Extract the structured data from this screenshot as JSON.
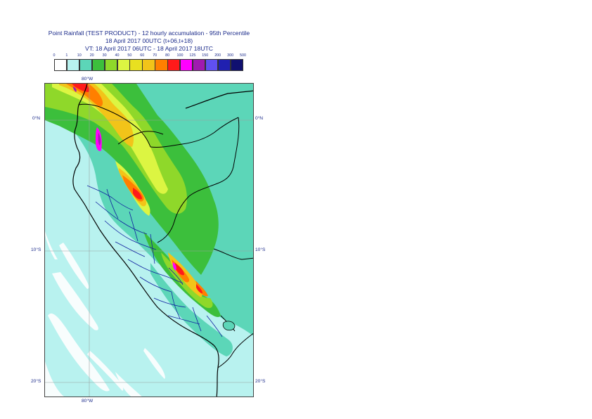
{
  "title": {
    "line1": "Point Rainfall (TEST PRODUCT) - 12 hourly accumulation - 95th Percentile",
    "line2": "18 April 2017 00UTC (t+06,t+18)",
    "line3": "VT: 18 April 2017 06UTC - 18 April 2017 18UTC"
  },
  "legend": {
    "thresholds": [
      "0",
      "1",
      "10",
      "20",
      "30",
      "40",
      "50",
      "60",
      "70",
      "80",
      "100",
      "125",
      "150",
      "200",
      "300",
      "500"
    ],
    "colors": [
      "#ffffff",
      "#b8f2ef",
      "#5cd6b8",
      "#3cbf3c",
      "#8fd82a",
      "#dcf542",
      "#e8e020",
      "#f2c419",
      "#ff7f00",
      "#ff1a1a",
      "#ff00ff",
      "#a01ab0",
      "#6050f0",
      "#2020b0",
      "#101070"
    ]
  },
  "axes": {
    "lon_top": "80°W",
    "lon_bottom": "80°W",
    "lat_labels": [
      "0°N",
      "10°S",
      "20°S"
    ]
  }
}
